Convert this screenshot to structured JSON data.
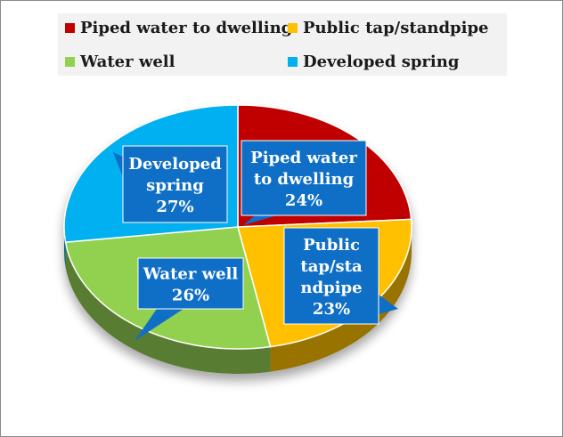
{
  "chart_data": {
    "type": "pie",
    "title": "",
    "style": "3d-exploded-pie",
    "legend_position": "top",
    "slices": [
      {
        "label": "Piped water to dwelling",
        "value": 24,
        "value_label": "24%",
        "callout_lines": [
          "Piped water",
          "to dwelling",
          "24%"
        ],
        "color": "#c00000"
      },
      {
        "label": "Public tap/standpipe",
        "value": 23,
        "value_label": "23%",
        "callout_lines": [
          "Public",
          "tap/sta",
          "ndpipe",
          "23%"
        ],
        "color": "#ffc000"
      },
      {
        "label": "Water well",
        "value": 26,
        "value_label": "26%",
        "callout_lines": [
          "Water well",
          "26%"
        ],
        "color": "#92d050"
      },
      {
        "label": "Developed spring",
        "value": 27,
        "value_label": "27%",
        "callout_lines": [
          "Developed",
          "spring",
          "27%"
        ],
        "color": "#00b0f0"
      }
    ],
    "callout_color": "#0f6fc6"
  }
}
